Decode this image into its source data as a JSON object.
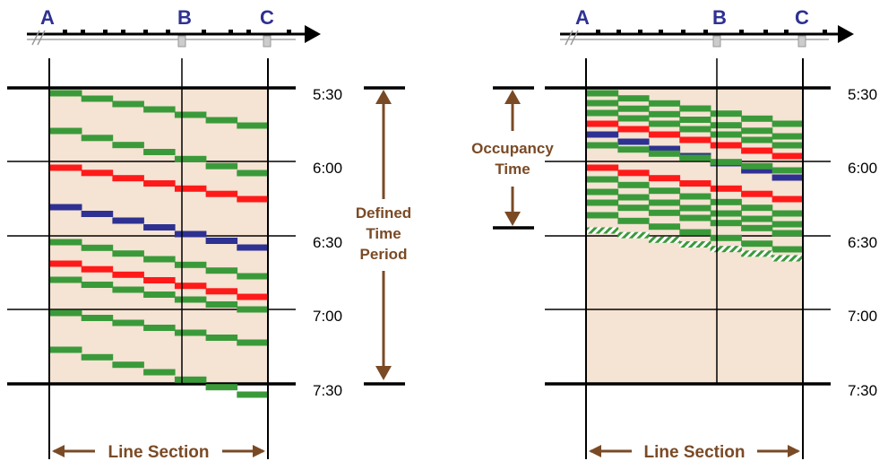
{
  "colors": {
    "background": "#f5e3d3",
    "green": "#3a9a3a",
    "red": "#ff1a1a",
    "blue": "#2e3192",
    "annotation": "#7a4a25",
    "station": "#2e3192"
  },
  "stations": [
    "A",
    "B",
    "C"
  ],
  "times": [
    "5:30",
    "6:00",
    "6:30",
    "7:00",
    "7:30"
  ],
  "left_panel": {
    "annotation_lines": [
      "Defined",
      "Time",
      "Period"
    ],
    "line_section": "Line Section"
  },
  "right_panel": {
    "annotation_lines": [
      "Occupancy",
      "Time"
    ],
    "line_section": "Line Section"
  }
}
